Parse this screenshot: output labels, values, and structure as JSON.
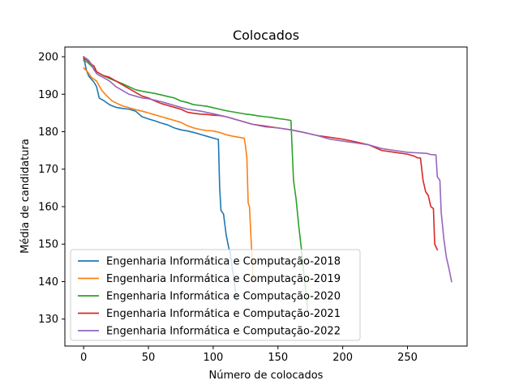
{
  "chart_data": {
    "type": "line",
    "title": "Colocados",
    "xlabel": "Número de colocados",
    "ylabel": "Média de candidatura",
    "xlim": [
      -14.5,
      296
    ],
    "ylim": [
      122.8,
      202.6
    ],
    "xticks": [
      0,
      50,
      100,
      150,
      200,
      250
    ],
    "yticks": [
      130,
      140,
      150,
      160,
      170,
      180,
      190,
      200
    ],
    "grid": false,
    "legend_position": "lower-left",
    "series": [
      {
        "name": "Engenharia Informática e Computação-2018",
        "color": "#1f77b4",
        "x": [
          0,
          2,
          4,
          8,
          10,
          12,
          16,
          20,
          25,
          30,
          35,
          40,
          45,
          50,
          55,
          60,
          65,
          70,
          75,
          80,
          85,
          90,
          95,
          100,
          103,
          104,
          105,
          106,
          108,
          110,
          112,
          113,
          115,
          117,
          118
        ],
        "y": [
          200,
          196.5,
          194.8,
          193.2,
          192,
          189,
          188.2,
          187.2,
          186.5,
          186.2,
          186,
          185.5,
          184,
          183.4,
          182.9,
          182.3,
          181.8,
          181,
          180.5,
          180.2,
          179.8,
          179.3,
          178.8,
          178.3,
          178,
          178,
          165,
          159,
          158,
          152.5,
          149,
          148,
          143,
          138,
          135
        ]
      },
      {
        "name": "Engenharia Informática e Computação-2019",
        "color": "#ff7f0e",
        "x": [
          0,
          3,
          6,
          10,
          14,
          18,
          22,
          26,
          30,
          35,
          40,
          45,
          50,
          55,
          60,
          65,
          70,
          75,
          80,
          85,
          90,
          95,
          100,
          105,
          110,
          115,
          120,
          122,
          124,
          125,
          126,
          127,
          128,
          129,
          130,
          131
        ],
        "y": [
          197,
          196,
          194.5,
          193.5,
          191,
          189.5,
          188.2,
          187.5,
          186.9,
          186.4,
          185.9,
          185.5,
          185,
          184.5,
          184,
          183.5,
          183,
          182.5,
          181.6,
          181,
          180.6,
          180.3,
          180.2,
          179.8,
          179.2,
          178.8,
          178.5,
          178.4,
          178.2,
          176,
          173,
          161,
          160,
          153,
          146,
          140
        ]
      },
      {
        "name": "Engenharia Informática e Computação-2020",
        "color": "#2ca02c",
        "x": [
          0,
          3,
          6,
          10,
          15,
          20,
          25,
          30,
          35,
          40,
          45,
          50,
          55,
          60,
          65,
          70,
          75,
          80,
          85,
          90,
          95,
          100,
          105,
          110,
          115,
          120,
          125,
          130,
          135,
          140,
          145,
          150,
          155,
          160,
          161,
          162,
          164,
          166,
          168,
          170,
          172,
          173
        ],
        "y": [
          199,
          198.5,
          197.5,
          196,
          195,
          194.2,
          193.5,
          192.8,
          192,
          191.2,
          190.8,
          190.5,
          190.2,
          189.8,
          189.4,
          189,
          188.2,
          187.8,
          187.2,
          187,
          186.8,
          186.4,
          186,
          185.6,
          185.3,
          185,
          184.7,
          184.5,
          184.2,
          184,
          183.8,
          183.5,
          183.3,
          183,
          175,
          167,
          162,
          155,
          149,
          142,
          136,
          132
        ]
      },
      {
        "name": "Engenharia Informática e Computação-2021",
        "color": "#d62728",
        "x": [
          0,
          3,
          6,
          8,
          10,
          15,
          20,
          25,
          30,
          35,
          40,
          45,
          50,
          55,
          60,
          65,
          70,
          75,
          80,
          85,
          90,
          95,
          100,
          105,
          110,
          115,
          120,
          125,
          130,
          140,
          150,
          160,
          170,
          180,
          190,
          200,
          210,
          220,
          230,
          240,
          250,
          255,
          258,
          260,
          262,
          264,
          266,
          268,
          270,
          271,
          273
        ],
        "y": [
          199.5,
          199,
          198,
          197.5,
          196,
          195,
          194.5,
          193.5,
          192.5,
          191.5,
          190.5,
          189.5,
          189,
          188.2,
          187.5,
          187,
          186.5,
          186,
          185.2,
          184.9,
          184.7,
          184.6,
          184.4,
          184.3,
          184,
          183.5,
          183,
          182.5,
          182,
          181.5,
          181,
          180.5,
          179.8,
          179,
          178.5,
          178,
          177.3,
          176.5,
          175,
          174.5,
          174,
          173.5,
          173,
          173,
          167,
          164,
          163,
          160,
          159.5,
          150,
          148.5
        ]
      },
      {
        "name": "Engenharia Informática e Computação-2022",
        "color": "#9467bd",
        "x": [
          0,
          2,
          4,
          6,
          8,
          10,
          12,
          15,
          20,
          25,
          30,
          35,
          40,
          45,
          50,
          55,
          60,
          65,
          70,
          75,
          80,
          90,
          100,
          110,
          120,
          130,
          140,
          150,
          160,
          170,
          180,
          190,
          200,
          210,
          220,
          230,
          240,
          250,
          260,
          265,
          268,
          272,
          273,
          274,
          275,
          276,
          278,
          280,
          282,
          284
        ],
        "y": [
          200,
          199.5,
          199,
          198,
          196.5,
          195.5,
          195,
          194.5,
          193.5,
          192,
          191,
          190,
          189.5,
          189,
          188.8,
          188.4,
          188,
          187.5,
          187,
          186.5,
          186,
          185.5,
          184.8,
          184,
          183,
          182,
          181.3,
          181,
          180.5,
          179.8,
          179,
          178,
          177.5,
          177,
          176.5,
          175.5,
          175,
          174.5,
          174.3,
          174.2,
          173.9,
          173.8,
          168,
          167.5,
          167,
          158.5,
          151.5,
          146.5,
          143.5,
          140
        ]
      }
    ]
  }
}
